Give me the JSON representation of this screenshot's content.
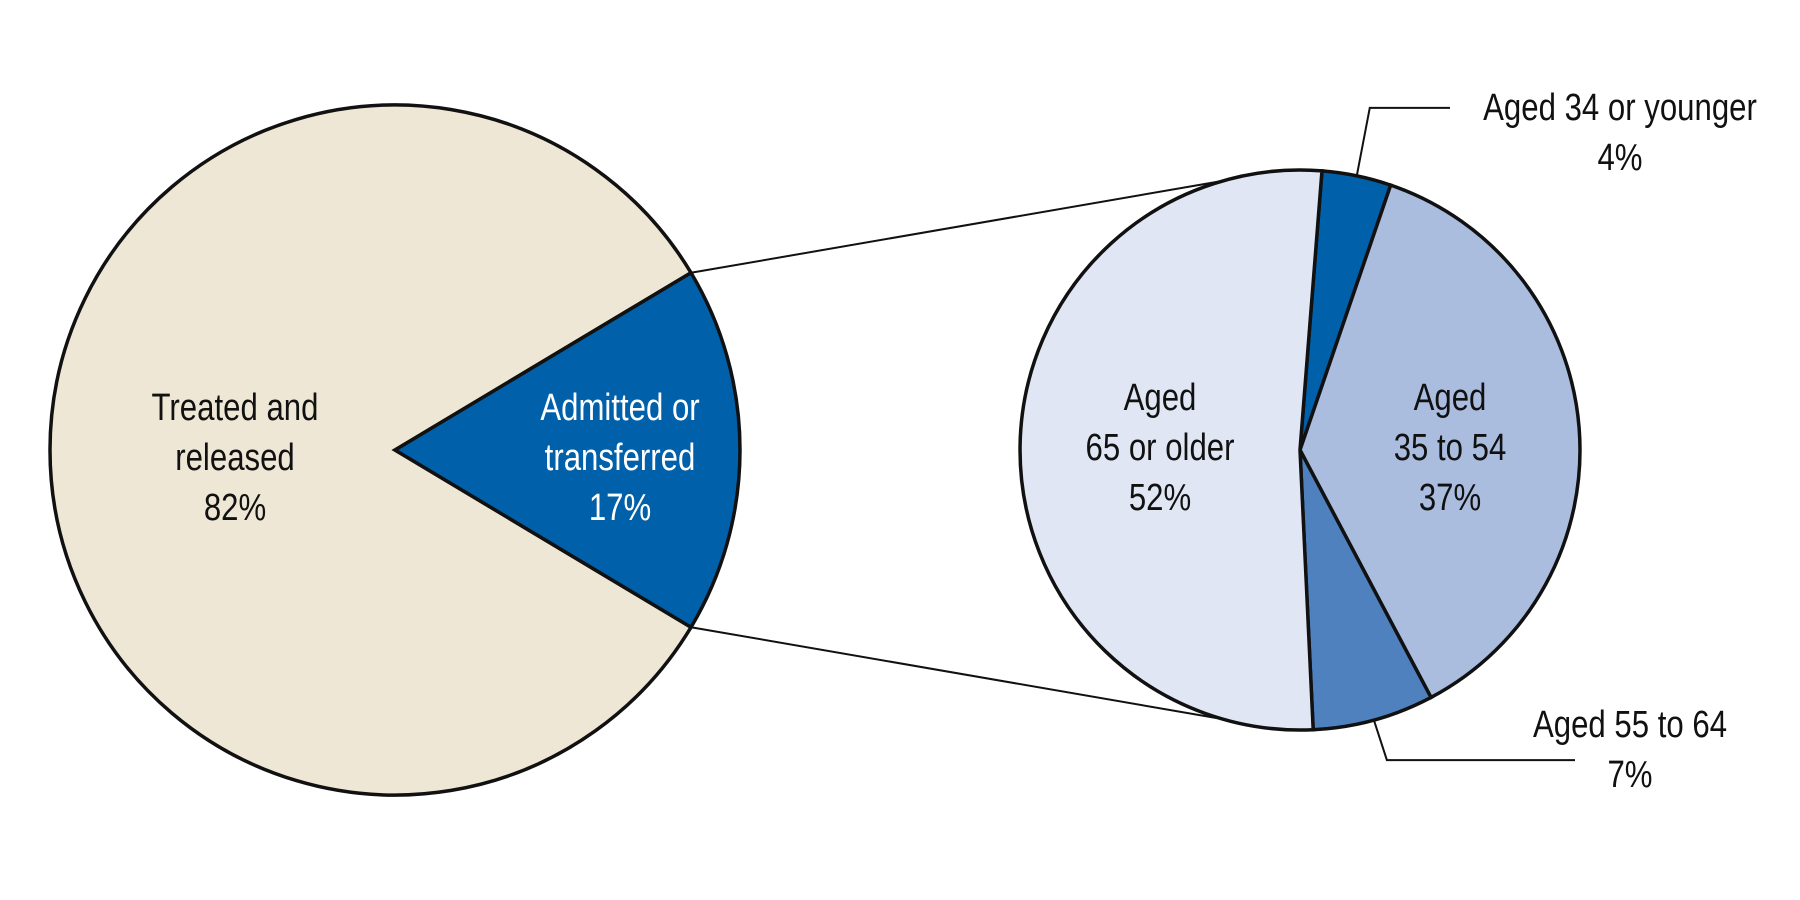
{
  "chart_data": [
    {
      "type": "pie",
      "slices": [
        {
          "id": "treated",
          "label_lines": [
            "Treated and",
            "released"
          ],
          "pct_label": "82%",
          "value": 82,
          "color": "#EFE7D5"
        },
        {
          "id": "admitted",
          "label_lines": [
            "Admitted or",
            "transferred"
          ],
          "pct_label": "17%",
          "value": 17,
          "color": "#0060AA"
        }
      ],
      "legend": "none",
      "annotations": "labels inside slices"
    },
    {
      "type": "pie",
      "title": "",
      "slices": [
        {
          "id": "age34",
          "label_lines": [
            "Aged 34 or younger"
          ],
          "pct_label": "4%",
          "value": 4,
          "color": "#0060AA"
        },
        {
          "id": "age35_54",
          "label_lines": [
            "Aged",
            "35 to 54"
          ],
          "pct_label": "37%",
          "value": 37,
          "color": "#AABDDF"
        },
        {
          "id": "age55_64",
          "label_lines": [
            "Aged 55 to 64"
          ],
          "pct_label": "7%",
          "value": 7,
          "color": "#4F81BE"
        },
        {
          "id": "age65",
          "label_lines": [
            "Aged",
            "65 or older"
          ],
          "pct_label": "52%",
          "value": 52,
          "color": "#E0E6F4"
        }
      ],
      "legend": "none",
      "annotations": "breakdown of the 'Admitted or transferred' slice; small slices labeled with leader lines"
    }
  ]
}
